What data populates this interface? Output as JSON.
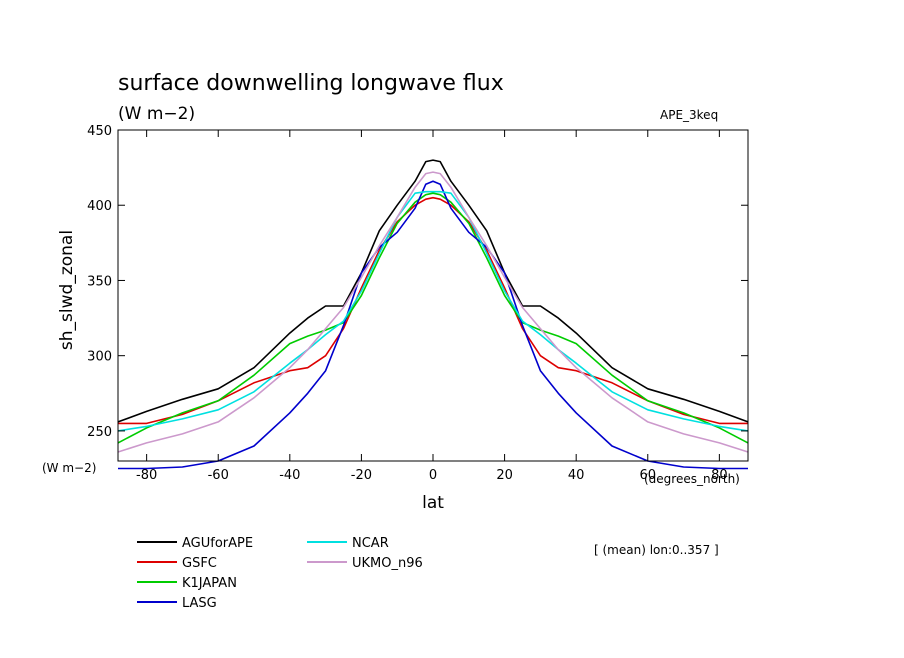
{
  "chart_data": {
    "type": "line",
    "title": "surface downwelling longwave flux",
    "subtitle": "(W m−2)",
    "experiment": "APE_3keq",
    "xlabel": "lat",
    "ylabel": "sh_slwd_zonal",
    "y_unit_label": "(W m−2)",
    "x_unit_label": "(degrees_north)",
    "annotation": "[ (mean) lon:0..357 ]",
    "xlim": [
      -88,
      88
    ],
    "ylim": [
      230,
      450
    ],
    "xticks": [
      -80,
      -60,
      -40,
      -20,
      0,
      20,
      40,
      60,
      80
    ],
    "xtick_labels": [
      "-80",
      "-60",
      "-40",
      "-20",
      "0",
      "20",
      "40",
      "60",
      "80"
    ],
    "yticks": [
      250,
      300,
      350,
      400,
      450
    ],
    "ytick_labels": [
      "250",
      "300",
      "350",
      "400",
      "450"
    ],
    "grid": false,
    "legend_placement": "below plot",
    "x": [
      -88,
      -80,
      -70,
      -60,
      -50,
      -40,
      -35,
      -30,
      -25,
      -20,
      -15,
      -10,
      -5,
      -2,
      0,
      2,
      5,
      10,
      15,
      20,
      25,
      30,
      35,
      40,
      50,
      60,
      70,
      80,
      88
    ],
    "series": [
      {
        "name": "AGUforAPE",
        "color": "#000000",
        "values": [
          256,
          263,
          271,
          278,
          292,
          315,
          325,
          333,
          333,
          355,
          383,
          400,
          416,
          429,
          430,
          429,
          416,
          400,
          383,
          355,
          333,
          333,
          325,
          315,
          292,
          278,
          271,
          263,
          256
        ]
      },
      {
        "name": "GSFC",
        "color": "#dd0000",
        "values": [
          255,
          255,
          261,
          270,
          282,
          290,
          292,
          300,
          318,
          345,
          370,
          389,
          400,
          404,
          405,
          404,
          400,
          389,
          370,
          345,
          318,
          300,
          292,
          290,
          282,
          270,
          261,
          255,
          255
        ]
      },
      {
        "name": "K1JAPAN",
        "color": "#00cc00",
        "values": [
          242,
          252,
          262,
          270,
          287,
          308,
          313,
          317,
          322,
          340,
          365,
          388,
          402,
          407,
          408,
          407,
          402,
          388,
          365,
          340,
          322,
          317,
          313,
          308,
          287,
          270,
          262,
          252,
          242
        ]
      },
      {
        "name": "LASG",
        "color": "#0000cc",
        "values": [
          225,
          225,
          226,
          230,
          240,
          262,
          275,
          290,
          320,
          355,
          372,
          382,
          398,
          414,
          416,
          414,
          398,
          382,
          372,
          355,
          320,
          290,
          275,
          262,
          240,
          230,
          226,
          225,
          225
        ]
      },
      {
        "name": "NCAR",
        "color": "#00e0e0",
        "values": [
          250,
          253,
          258,
          264,
          276,
          295,
          304,
          314,
          323,
          343,
          368,
          392,
          408,
          409,
          409,
          409,
          408,
          392,
          368,
          343,
          323,
          314,
          304,
          295,
          276,
          264,
          258,
          253,
          250
        ]
      },
      {
        "name": "UKMO_n96",
        "color": "#cc99cc",
        "values": [
          236,
          242,
          248,
          256,
          272,
          292,
          304,
          318,
          332,
          352,
          373,
          392,
          412,
          421,
          422,
          421,
          412,
          392,
          373,
          352,
          332,
          318,
          304,
          292,
          272,
          256,
          248,
          242,
          236
        ]
      }
    ]
  }
}
